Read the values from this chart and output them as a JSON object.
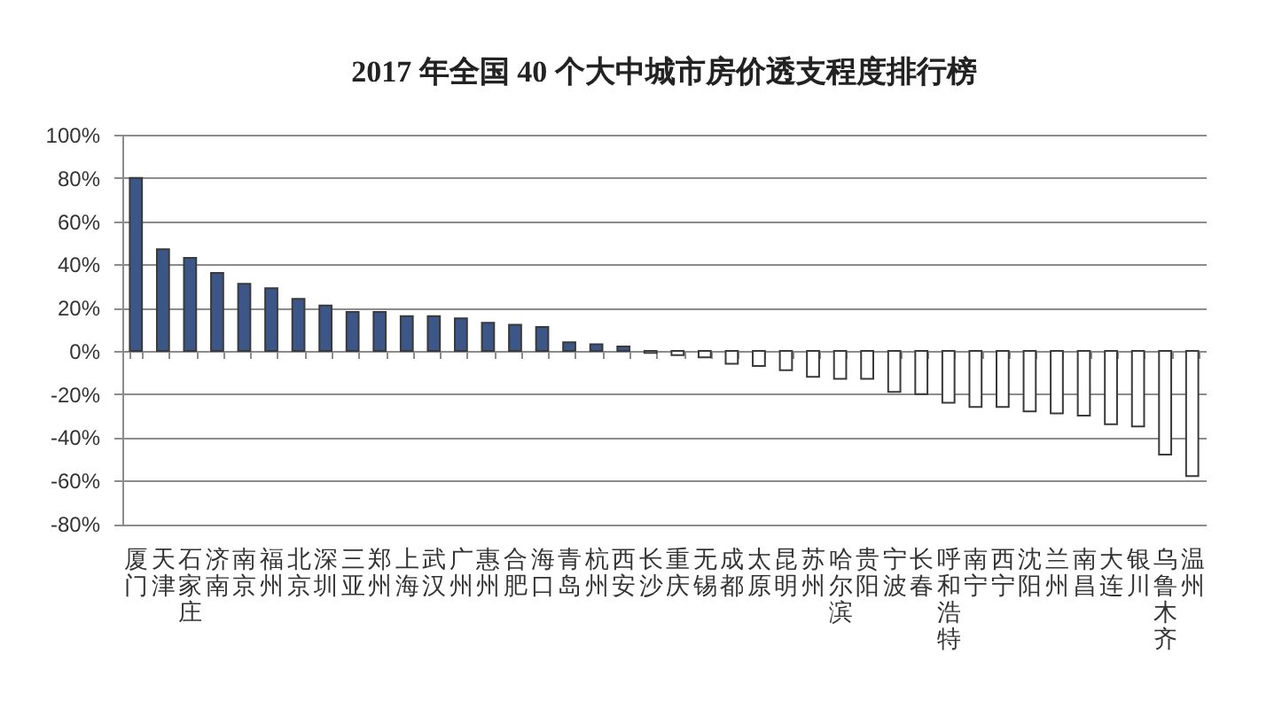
{
  "chart_data": {
    "type": "bar",
    "title": "2017 年全国 40 个大中城市房价透支程度排行榜",
    "categories": [
      "厦门",
      "天津",
      "石家庄",
      "济南",
      "南京",
      "福州",
      "北京",
      "深圳",
      "三亚",
      "郑州",
      "上海",
      "武汉",
      "广州",
      "惠州",
      "合肥",
      "海口",
      "青岛",
      "杭州",
      "西安",
      "长沙",
      "重庆",
      "无锡",
      "成都",
      "太原",
      "昆明",
      "苏州",
      "哈尔滨",
      "贵阳",
      "宁波",
      "长春",
      "呼和浩特",
      "南宁",
      "西宁",
      "沈阳",
      "兰州",
      "南昌",
      "大连",
      "银川",
      "乌鲁木齐",
      "温州"
    ],
    "values": [
      80,
      47,
      43,
      36,
      31,
      29,
      24,
      21,
      18,
      18,
      16,
      16,
      15,
      13,
      12,
      11,
      4,
      3,
      2,
      -1,
      -2,
      -3,
      -6,
      -7,
      -9,
      -12,
      -13,
      -13,
      -19,
      -20,
      -24,
      -26,
      -26,
      -28,
      -29,
      -30,
      -34,
      -35,
      -48,
      -58
    ],
    "colors": [
      "#3b5687",
      "#3b5687",
      "#3b5687",
      "#3b5687",
      "#3b5687",
      "#3b5687",
      "#3b5687",
      "#3b5687",
      "#3b5687",
      "#3b5687",
      "#3b5687",
      "#3b5687",
      "#3b5687",
      "#3b5687",
      "#3b5687",
      "#3b5687",
      "#3b5687",
      "#3b5687",
      "#3b5687",
      "#ffffff",
      "#ffffff",
      "#ffffff",
      "#ffffff",
      "#ffffff",
      "#ffffff",
      "#ffffff",
      "#ffffff",
      "#ffffff",
      "#ffffff",
      "#ffffff",
      "#ffffff",
      "#ffffff",
      "#ffffff",
      "#ffffff",
      "#ffffff",
      "#ffffff",
      "#ffffff",
      "#ffffff",
      "#ffffff",
      "#ffffff"
    ],
    "ylim": [
      -80,
      100
    ],
    "yticks": [
      {
        "value": -80,
        "label": "-80%"
      },
      {
        "value": -60,
        "label": "-60%"
      },
      {
        "value": -40,
        "label": "-40%"
      },
      {
        "value": -20,
        "label": "-20%"
      },
      {
        "value": 0,
        "label": "0%"
      },
      {
        "value": 20,
        "label": "20%"
      },
      {
        "value": 40,
        "label": "40%"
      },
      {
        "value": 60,
        "label": "60%"
      },
      {
        "value": 80,
        "label": "80%"
      },
      {
        "value": 100,
        "label": "100%"
      }
    ],
    "grid": "y"
  }
}
